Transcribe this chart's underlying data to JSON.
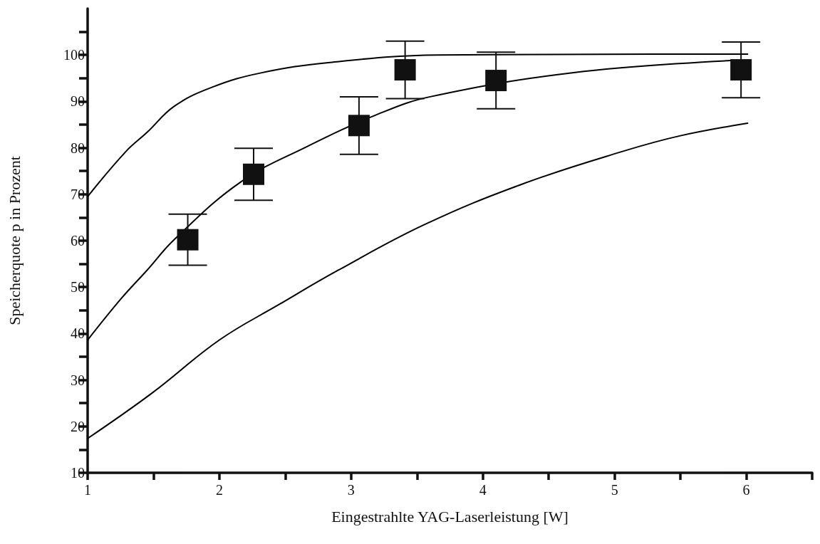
{
  "chart_data": {
    "type": "line",
    "xlabel": "Eingestrahlte YAG-Laserleistung [W]",
    "ylabel": "Speicherquote p in Prozent",
    "xlim": [
      1,
      6.5
    ],
    "xticks": [
      1,
      {
        "value": 1.5,
        "label": null
      },
      2,
      {
        "value": 2.5,
        "label": null
      },
      3,
      {
        "value": 3.5,
        "label": null
      },
      4,
      {
        "value": 4.5,
        "label": null
      },
      5,
      {
        "value": 5.5,
        "label": null
      },
      6,
      {
        "value": 6.5,
        "label": null
      }
    ],
    "ylim": [
      10,
      110
    ],
    "yticks": [
      10,
      {
        "value": 15,
        "label": null
      },
      20,
      {
        "value": 25,
        "label": null
      },
      30,
      {
        "value": 35,
        "label": null
      },
      40,
      {
        "value": 45,
        "label": null
      },
      50,
      {
        "value": 55,
        "label": null
      },
      60,
      {
        "value": 65,
        "label": null
      },
      70,
      {
        "value": 75,
        "label": null
      },
      80,
      {
        "value": 85,
        "label": null
      },
      90,
      {
        "value": 95,
        "label": null
      },
      100,
      {
        "value": 105,
        "label": null
      }
    ],
    "grid": false,
    "marker": "none",
    "line_style": "solid",
    "series": [
      {
        "color": "#000000",
        "x": [
          1,
          1.29,
          1.45,
          1.66,
          1.95,
          2.31,
          2.84,
          3.66,
          4.5,
          5.3,
          6.01
        ],
        "values": [
          69.5,
          79.2,
          83.3,
          89.0,
          93.1,
          96.1,
          98.4,
          100,
          100.1,
          100.2,
          100.2
        ]
      },
      {
        "color": "#000000",
        "x": [
          1,
          1.26,
          1.45,
          1.66,
          2.16,
          2.66,
          3.2,
          3.6,
          4.69,
          5.88
        ],
        "values": [
          38.6,
          47.7,
          53.6,
          60.3,
          72.6,
          80.2,
          87.2,
          91,
          96.2,
          98.8
        ]
      },
      {
        "color": "#000000",
        "x": [
          1,
          1.49,
          2,
          2.45,
          2.9,
          3.56,
          4.3,
          5.07,
          5.5,
          6.01
        ],
        "values": [
          17.4,
          27.2,
          38.6,
          46.2,
          53.6,
          63.5,
          72.2,
          79.3,
          82.6,
          85.3
        ]
      },
      {
        "type": "scatter",
        "color": "#111111",
        "marker": "square",
        "x": [
          1.76,
          2.26,
          3.06,
          3.41,
          4.1,
          5.96
        ],
        "values": [
          60.2,
          74.3,
          84.8,
          96.8,
          94.5,
          96.8
        ],
        "errors": [
          5.5,
          5.6,
          6.2,
          6.2,
          6.1,
          6
        ]
      }
    ]
  }
}
